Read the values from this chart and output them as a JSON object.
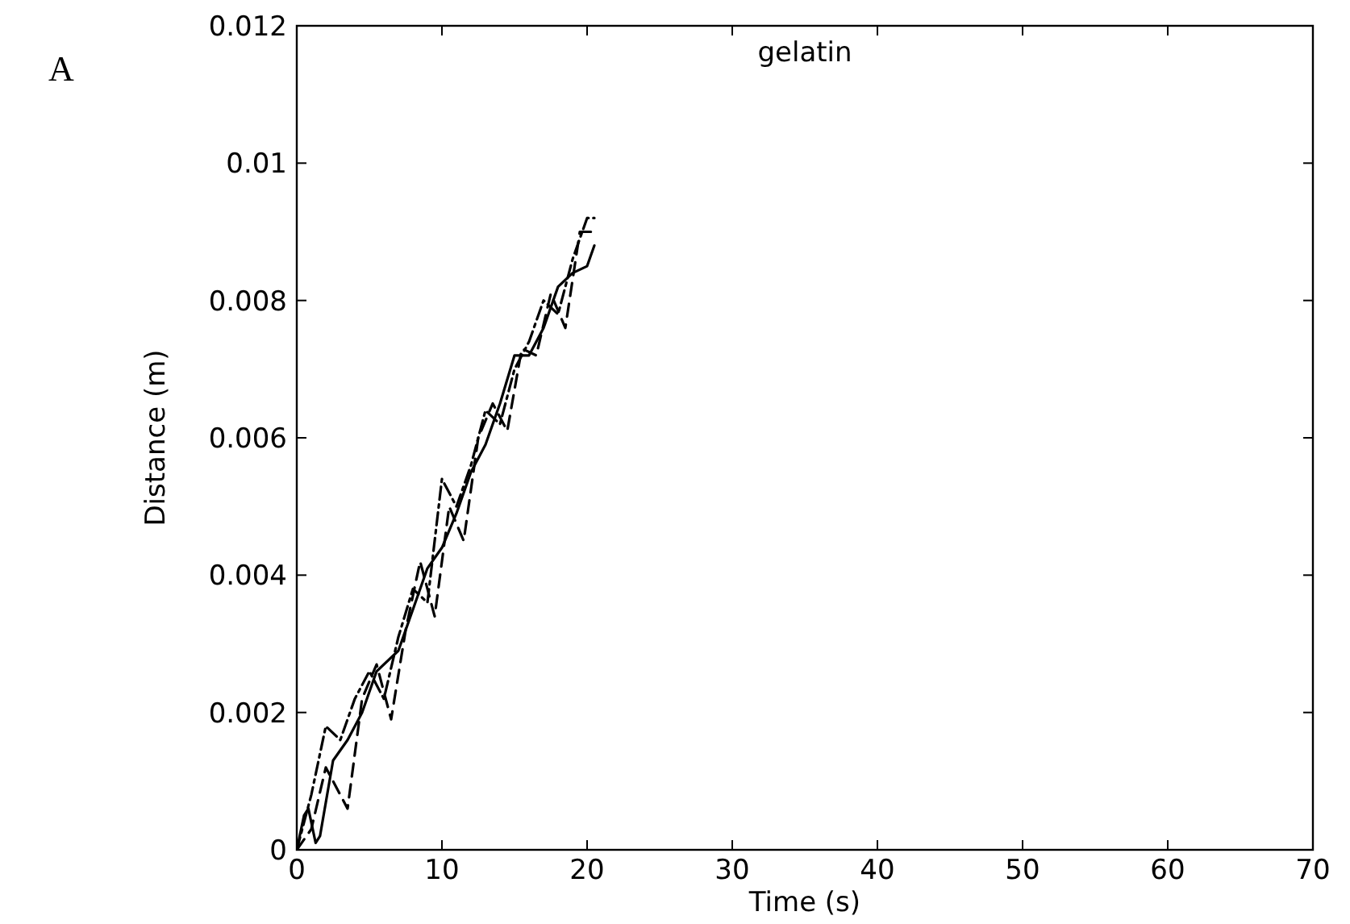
{
  "chart_data": {
    "type": "line",
    "title": "gelatin",
    "xlabel": "Time (s)",
    "ylabel": "Distance (m)",
    "annotations": [
      "A"
    ],
    "xlim": [
      0,
      70
    ],
    "xticks": [
      0,
      10,
      20,
      30,
      40,
      50,
      60,
      70
    ],
    "ylim": [
      0,
      0.012
    ],
    "yticks": [
      0,
      0.002,
      0.004,
      0.006,
      0.008,
      0.01,
      0.012
    ],
    "grid": false,
    "marker": "none",
    "series": [
      {
        "color": "#000000",
        "line_style": "solid",
        "x": [
          0,
          0.5,
          0.8,
          1.3,
          1.6,
          2.5,
          3.5,
          4.5,
          5.5,
          7,
          8,
          9,
          10,
          11,
          12,
          13,
          14,
          15,
          16,
          17,
          18,
          19,
          20,
          20.5
        ],
        "values": [
          0,
          0.0005,
          0.0006,
          0.0001,
          0.0002,
          0.0013,
          0.0016,
          0.002,
          0.0026,
          0.0029,
          0.0035,
          0.0041,
          0.0044,
          0.0049,
          0.0055,
          0.0059,
          0.0065,
          0.0072,
          0.0072,
          0.0076,
          0.0082,
          0.0084,
          0.0085,
          0.0088
        ]
      },
      {
        "color": "#000000",
        "line_style": "dashdot",
        "x": [
          0,
          1,
          2,
          3,
          4,
          5,
          6,
          7,
          8,
          9,
          10,
          11,
          12,
          13,
          14,
          15,
          16,
          17,
          18,
          19,
          20,
          20.5
        ],
        "values": [
          0,
          0.0008,
          0.0018,
          0.0016,
          0.0022,
          0.0026,
          0.0022,
          0.0031,
          0.0038,
          0.0036,
          0.0054,
          0.005,
          0.0056,
          0.0064,
          0.0062,
          0.007,
          0.0074,
          0.008,
          0.0078,
          0.0086,
          0.0092,
          0.0092
        ]
      },
      {
        "color": "#000000",
        "line_style": "dashed",
        "x": [
          0,
          1,
          2,
          3,
          3.5,
          4.5,
          5.5,
          6.5,
          7.5,
          8.5,
          9.5,
          10.5,
          11.5,
          12.5,
          13.5,
          14.5,
          15.5,
          16.5,
          17.5,
          18.5,
          19.5,
          20.5
        ],
        "values": [
          0,
          0.0003,
          0.0012,
          0.0008,
          0.0006,
          0.0022,
          0.0027,
          0.0019,
          0.0032,
          0.0042,
          0.0034,
          0.005,
          0.0045,
          0.006,
          0.0065,
          0.0061,
          0.0073,
          0.0072,
          0.0081,
          0.0076,
          0.009,
          0.009
        ]
      }
    ]
  }
}
